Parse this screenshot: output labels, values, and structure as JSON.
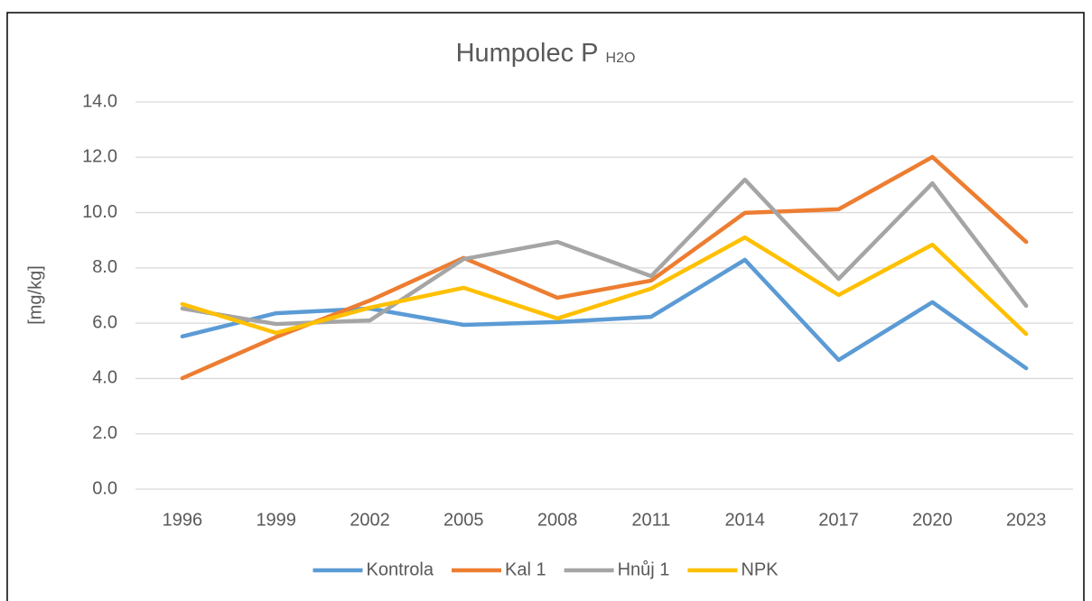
{
  "chart_data": {
    "type": "line",
    "title": "Humpolec P",
    "title_subscript": "H2O",
    "y_label": "[mg/kg]",
    "categories": [
      "1996",
      "1999",
      "2002",
      "2005",
      "2008",
      "2011",
      "2014",
      "2017",
      "2020",
      "2023"
    ],
    "series": [
      {
        "name": "Kontrola",
        "color": "#5b9bd5",
        "values": [
          5.52,
          6.36,
          6.53,
          5.94,
          6.04,
          6.23,
          8.29,
          4.67,
          6.76,
          4.37
        ]
      },
      {
        "name": "Kal 1",
        "color": "#ed7d31",
        "values": [
          4.01,
          5.5,
          6.82,
          8.36,
          6.92,
          7.54,
          9.99,
          10.12,
          12.01,
          8.94
        ]
      },
      {
        "name": "Hnůj 1",
        "color": "#a5a5a5",
        "values": [
          6.53,
          5.97,
          6.1,
          8.32,
          8.94,
          7.7,
          11.19,
          7.6,
          11.06,
          6.63
        ]
      },
      {
        "name": "NPK",
        "color": "#ffc000",
        "values": [
          6.69,
          5.65,
          6.56,
          7.28,
          6.17,
          7.25,
          9.1,
          7.02,
          8.84,
          5.61
        ]
      }
    ],
    "ylim": [
      0,
      14
    ],
    "yticks": [
      {
        "value": 0,
        "label": "0.0"
      },
      {
        "value": 2,
        "label": "2.0"
      },
      {
        "value": 4,
        "label": "4.0"
      },
      {
        "value": 6,
        "label": "6.0"
      },
      {
        "value": 8,
        "label": "8.0"
      },
      {
        "value": 10,
        "label": "10.0"
      },
      {
        "value": 12,
        "label": "12.0"
      },
      {
        "value": 14,
        "label": "14.0"
      }
    ],
    "grid": true,
    "legend": "bottom"
  }
}
